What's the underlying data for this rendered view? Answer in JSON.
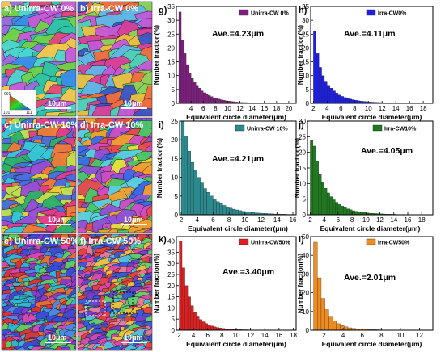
{
  "ebsd_panels": [
    {
      "label": "a)",
      "title": "Unirra-CW 0%",
      "scale": "10μm",
      "colors": [
        "#2ec4a8",
        "#e2477c",
        "#6fd24a",
        "#c85ad8",
        "#3a8ee8",
        "#f2c94c",
        "#9a6be0",
        "#4bd6d0"
      ]
    },
    {
      "label": "b)",
      "title": "Irra-CW 0%",
      "scale": "10μm",
      "colors": [
        "#d9409a",
        "#5fb8e8",
        "#f26d3d",
        "#8ad45a",
        "#3c56c8",
        "#e8c040",
        "#c658d8",
        "#4fd0b8"
      ]
    },
    {
      "label": "c)",
      "title": "Unirra-CW 10%",
      "scale": "10μm",
      "colors": [
        "#e23c8a",
        "#2fb06a",
        "#4a6ee0",
        "#e8d03a",
        "#9a4cd8",
        "#36c8d8",
        "#f07a3a",
        "#c0e050"
      ]
    },
    {
      "label": "d)",
      "title": "Irra-CW 10%",
      "scale": "10μm",
      "colors": [
        "#3a6ae8",
        "#e84a4a",
        "#d04cc8",
        "#48c86a",
        "#f0a030",
        "#5ad0e0",
        "#9050d8",
        "#e8e040"
      ]
    },
    {
      "label": "e)",
      "title": "Unirra-CW 50%",
      "scale": "10μm",
      "colors": [
        "#3a4ad8",
        "#e0303a",
        "#4a8ae8",
        "#d848b8",
        "#30b8d0",
        "#e87030",
        "#8a3ad0",
        "#60d060"
      ]
    },
    {
      "label": "f)",
      "title": "Irra-CW 50%",
      "scale": "10μm",
      "colors": [
        "#3a5ae0",
        "#e8403a",
        "#50c0e0",
        "#d84ab0",
        "#60d070",
        "#f0c040",
        "#7040d0",
        "#ea7a9a"
      ]
    }
  ],
  "ipf_legend": {
    "labels": [
      "001",
      "101",
      "111"
    ]
  },
  "chart_data": [
    {
      "type": "bar",
      "panel": "g)",
      "legend": "Unirra-CW 0%",
      "average": "Ave.=4.23μm",
      "color": "#7d1f7d",
      "x": [
        2.2,
        2.6,
        3.0,
        3.4,
        3.8,
        4.2,
        4.6,
        5.0,
        5.4,
        5.8,
        6.2,
        6.6,
        7.0,
        7.4,
        7.8,
        8.2,
        8.6,
        9.0,
        9.4,
        9.8,
        10.2,
        10.6,
        11.0,
        11.4,
        11.8,
        12.2,
        12.6,
        13.0,
        13.4,
        13.8,
        14.2,
        14.6,
        15.0,
        15.4,
        15.8,
        16.2,
        16.6,
        17.0,
        17.4,
        17.8,
        18.2,
        18.6,
        19.0,
        19.4,
        19.8
      ],
      "values": [
        33,
        23,
        18,
        14,
        11,
        9,
        7.5,
        6.5,
        5.5,
        4.5,
        3.8,
        3.2,
        2.8,
        2.4,
        2,
        1.7,
        1.5,
        1.3,
        1.1,
        0.9,
        0.8,
        0.7,
        0.6,
        0.5,
        0.4,
        0.35,
        0.3,
        0.3,
        0.25,
        0.2,
        0.2,
        0.15,
        0.15,
        0.1,
        0.1,
        0.1,
        0.1,
        0.08,
        0.08,
        0.06,
        0.06,
        0.05,
        0.05,
        0.05,
        0.05
      ],
      "bar_width": 0.4,
      "xlim": [
        1.6,
        21.2
      ],
      "ylim": [
        0,
        35
      ],
      "xticks": [
        4,
        6,
        8,
        10,
        12,
        14,
        16,
        18,
        20
      ],
      "yticks": [
        0,
        5,
        10,
        15,
        20,
        25,
        30,
        35
      ],
      "xlabel": "Equivalent circle diameter(μm)",
      "ylabel": "Number fraction(%)"
    },
    {
      "type": "bar",
      "panel": "h)",
      "legend": "Irra-CW0%",
      "average": "Ave.=4.11μm",
      "color": "#1f1fdf",
      "x": [
        2.2,
        2.6,
        3.0,
        3.4,
        3.8,
        4.2,
        4.6,
        5.0,
        5.4,
        5.8,
        6.2,
        6.6,
        7.0,
        7.4,
        7.8,
        8.2,
        8.6,
        9.0,
        9.4,
        9.8,
        10.2,
        10.6,
        11.0,
        11.4,
        11.8,
        12.2,
        12.6,
        13.0,
        13.4,
        13.8,
        14.2,
        14.6,
        15.0,
        15.4,
        15.8,
        16.2,
        16.6,
        17.0,
        17.4,
        17.8
      ],
      "values": [
        26,
        18,
        13,
        10,
        8,
        6.5,
        5.5,
        4.5,
        3.7,
        3,
        2.5,
        2.1,
        1.8,
        1.5,
        1.3,
        1.1,
        0.9,
        0.8,
        0.7,
        0.6,
        0.5,
        0.45,
        0.4,
        0.35,
        0.3,
        0.25,
        0.2,
        0.2,
        0.15,
        0.15,
        0.1,
        0.1,
        0.1,
        0.08,
        0.08,
        0.06,
        0.06,
        0.05,
        0.05,
        0.05
      ],
      "bar_width": 0.4,
      "xlim": [
        1.6,
        19.4
      ],
      "ylim": [
        0,
        35
      ],
      "xticks": [
        2,
        4,
        6,
        8,
        10,
        12,
        14,
        16,
        18
      ],
      "yticks": [
        0,
        5,
        10,
        15,
        20,
        25,
        30,
        35
      ],
      "xlabel": "Equivalent circle diameter(μm)",
      "ylabel": "Number fraction(%)"
    },
    {
      "type": "bar",
      "panel": "i)",
      "legend": "Unirra-CW 10%",
      "average": "Ave.=4.21μm",
      "color": "#2a8a8e",
      "x": [
        2.2,
        2.6,
        3.0,
        3.4,
        3.8,
        4.2,
        4.6,
        5.0,
        5.4,
        5.8,
        6.2,
        6.6,
        7.0,
        7.4,
        7.8,
        8.2,
        8.6,
        9.0,
        9.4,
        9.8,
        10.2,
        10.6,
        11.0,
        11.4,
        11.8,
        12.2,
        12.6,
        13.0,
        13.4,
        13.8,
        14.2,
        14.6,
        15.0,
        15.4,
        15.8
      ],
      "values": [
        25,
        21,
        17,
        14,
        12,
        10,
        8.5,
        7,
        6,
        5,
        4.2,
        3.5,
        3,
        2.5,
        2.1,
        1.8,
        1.5,
        1.3,
        1.1,
        0.9,
        0.8,
        0.7,
        0.6,
        0.5,
        0.45,
        0.4,
        0.35,
        0.3,
        0.25,
        0.2,
        0.2,
        0.15,
        0.15,
        0.1,
        0.1
      ],
      "bar_width": 0.4,
      "xlim": [
        1.8,
        16.4
      ],
      "ylim": [
        0,
        25
      ],
      "xticks": [
        2,
        4,
        6,
        8,
        10,
        12,
        14,
        16
      ],
      "yticks": [
        0,
        5,
        10,
        15,
        20,
        25
      ],
      "xlabel": "Equivalent circle diameter(μm)",
      "ylabel": "Number fraction(%)"
    },
    {
      "type": "bar",
      "panel": "j)",
      "legend": "Irra-CW10%",
      "average": "Ave.=4.05μm",
      "color": "#1f7a1f",
      "x": [
        2.2,
        2.6,
        3.0,
        3.4,
        3.8,
        4.2,
        4.6,
        5.0,
        5.4,
        5.8,
        6.2,
        6.6,
        7.0,
        7.4,
        7.8,
        8.2,
        8.6,
        9.0,
        9.4,
        9.8,
        10.2,
        10.6,
        11.0,
        11.4,
        11.8,
        12.2,
        12.6,
        13.0,
        13.4,
        13.8,
        14.2,
        14.6,
        15.0,
        15.4,
        15.8,
        16.2,
        16.6,
        17.0
      ],
      "values": [
        24,
        22,
        17,
        13,
        10.5,
        8.5,
        7,
        5.8,
        4.8,
        4,
        3.3,
        2.8,
        2.3,
        1.9,
        1.6,
        1.3,
        1.1,
        0.9,
        0.8,
        0.7,
        0.6,
        0.5,
        0.45,
        0.4,
        0.35,
        0.3,
        0.25,
        0.2,
        0.2,
        0.15,
        0.15,
        0.1,
        0.1,
        0.1,
        0.08,
        0.08,
        0.06,
        0.05
      ],
      "bar_width": 0.4,
      "xlim": [
        1.6,
        19.6
      ],
      "ylim": [
        0,
        30
      ],
      "xticks": [
        2,
        4,
        6,
        8,
        10,
        12,
        14,
        16,
        18
      ],
      "yticks": [
        0,
        5,
        10,
        15,
        20,
        25,
        30
      ],
      "xlabel": "Equivalent circle diameter(μm)",
      "ylabel": "Number fraction(%)"
    },
    {
      "type": "bar",
      "panel": "k)",
      "legend": "Unirra-CW50%",
      "average": "Ave.=3.40μm",
      "color": "#e01f1f",
      "x": [
        2.2,
        2.6,
        3.0,
        3.4,
        3.8,
        4.2,
        4.6,
        5.0,
        5.4,
        5.8,
        6.2,
        6.6,
        7.0,
        7.4,
        7.8,
        8.2,
        8.6,
        9.0,
        9.4,
        9.8,
        10.2,
        10.6,
        11.0,
        11.4,
        11.8,
        12.2,
        12.6,
        13.0,
        13.4,
        13.8,
        14.2
      ],
      "values": [
        40,
        28,
        20,
        15,
        11,
        8,
        6,
        4.8,
        3.8,
        3,
        2.4,
        1.9,
        1.5,
        1.2,
        1,
        0.8,
        0.6,
        0.5,
        0.4,
        0.35,
        0.3,
        0.25,
        0.2,
        0.2,
        0.15,
        0.1,
        0.1,
        0.1,
        0.08,
        0.06,
        0.05
      ],
      "bar_width": 0.4,
      "xlim": [
        1.6,
        18.4
      ],
      "ylim": [
        0,
        42
      ],
      "xticks": [
        2,
        4,
        6,
        8,
        10,
        12,
        14,
        16,
        18
      ],
      "yticks": [
        0,
        5,
        10,
        15,
        20,
        25,
        30,
        35,
        40
      ],
      "xlabel": "Equivalent circle diameter(μm)",
      "ylabel": "Number fraction(%)"
    },
    {
      "type": "bar",
      "panel": "l)",
      "legend": "Irra-CW50%",
      "average": "Ave.=2.01μm",
      "color": "#f08c1f",
      "x": [
        1.1,
        1.5,
        1.9,
        2.3,
        2.7,
        3.1,
        3.5,
        3.9,
        4.3,
        4.7,
        5.1,
        5.5,
        5.9,
        6.3,
        6.7,
        7.1,
        7.5,
        7.9,
        8.3,
        8.7,
        9.1,
        9.5,
        9.9,
        10.3
      ],
      "values": [
        47,
        28,
        17,
        11,
        7,
        5,
        3.5,
        2.5,
        1.8,
        1.3,
        1,
        0.8,
        0.6,
        0.5,
        0.4,
        0.3,
        0.25,
        0.2,
        0.15,
        0.1,
        0.1,
        0.08,
        0.06,
        0.05
      ],
      "bar_width": 0.4,
      "xlim": [
        0.6,
        13.4
      ],
      "ylim": [
        0,
        50
      ],
      "xticks": [
        2,
        4,
        6,
        8,
        10,
        12
      ],
      "yticks": [
        0,
        10,
        20,
        30,
        40,
        50
      ],
      "xlabel": "Equivalent circle diameter(μm)",
      "ylabel": "Number fraction(%)"
    }
  ]
}
